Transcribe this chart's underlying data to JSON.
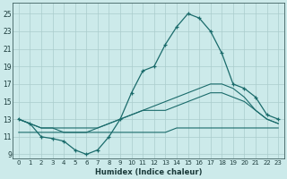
{
  "xlabel": "Humidex (Indice chaleur)",
  "background_color": "#cceaea",
  "grid_color": "#aacccc",
  "line_color": "#1a6b6b",
  "xlim": [
    -0.5,
    23.5
  ],
  "ylim": [
    8.5,
    26.2
  ],
  "xticks": [
    0,
    1,
    2,
    3,
    4,
    5,
    6,
    7,
    8,
    9,
    10,
    11,
    12,
    13,
    14,
    15,
    16,
    17,
    18,
    19,
    20,
    21,
    22,
    23
  ],
  "yticks": [
    9,
    11,
    13,
    15,
    17,
    19,
    21,
    23,
    25
  ],
  "line1_x": [
    0,
    1,
    2,
    3,
    4,
    5,
    6,
    7,
    8,
    9,
    10,
    11,
    12,
    13,
    14,
    15,
    16,
    17,
    18,
    19,
    20,
    21,
    22,
    23
  ],
  "line1_y": [
    13,
    12.5,
    11,
    10.8,
    10.5,
    9.5,
    9,
    9.5,
    11,
    13,
    16,
    18.5,
    19,
    21.5,
    23.5,
    25,
    24.5,
    23,
    20.5,
    17,
    16.5,
    15.5,
    13.5,
    13
  ],
  "line2_x": [
    0,
    1,
    2,
    3,
    4,
    5,
    6,
    7,
    8,
    9,
    10,
    11,
    12,
    13,
    14,
    15,
    16,
    17,
    18,
    19,
    20,
    21,
    22,
    23
  ],
  "line2_y": [
    13,
    12.5,
    12,
    12,
    11.5,
    11.5,
    11.5,
    12,
    12.5,
    13,
    13.5,
    14,
    14.5,
    15,
    15.5,
    16,
    16.5,
    17,
    17,
    16.5,
    15.5,
    14,
    13,
    12.5
  ],
  "line3_x": [
    0,
    1,
    2,
    3,
    4,
    5,
    6,
    7,
    8,
    9,
    10,
    11,
    12,
    13,
    14,
    15,
    16,
    17,
    18,
    19,
    20,
    21,
    22,
    23
  ],
  "line3_y": [
    13,
    12.5,
    12,
    12,
    12,
    12,
    12,
    12,
    12.5,
    13,
    13.5,
    14,
    14,
    14,
    14.5,
    15,
    15.5,
    16,
    16,
    15.5,
    15,
    14,
    13,
    12.5
  ],
  "line4_x": [
    0,
    1,
    2,
    3,
    4,
    5,
    6,
    7,
    8,
    9,
    10,
    11,
    12,
    13,
    14,
    15,
    16,
    17,
    18,
    19,
    20,
    21,
    22,
    23
  ],
  "line4_y": [
    11.5,
    11.5,
    11.5,
    11.5,
    11.5,
    11.5,
    11.5,
    11.5,
    11.5,
    11.5,
    11.5,
    11.5,
    11.5,
    11.5,
    12,
    12,
    12,
    12,
    12,
    12,
    12,
    12,
    12,
    12
  ]
}
